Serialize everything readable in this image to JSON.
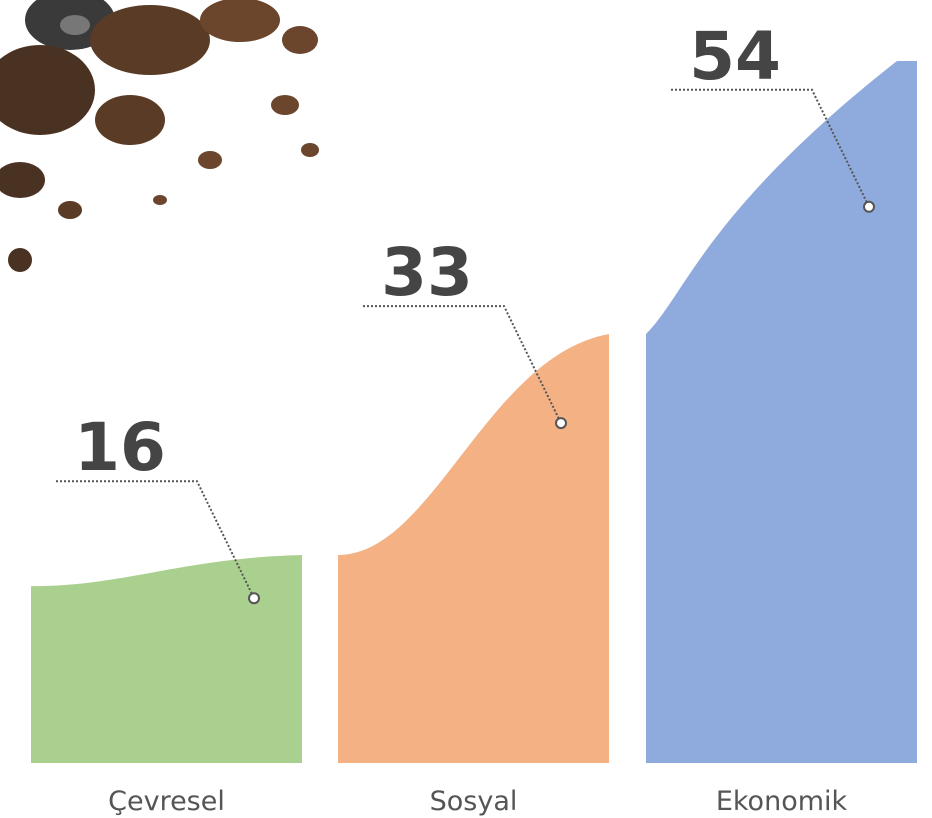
{
  "chart_data": {
    "type": "bar",
    "categories": [
      "Çevresel",
      "Sosyal",
      "Ekonomik"
    ],
    "values": [
      16,
      33,
      54
    ],
    "colors": [
      "#a9d08e",
      "#f4b183",
      "#8faadc"
    ]
  }
}
